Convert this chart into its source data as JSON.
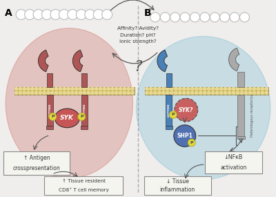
{
  "fig_width": 4.0,
  "fig_height": 2.85,
  "dpi": 100,
  "background": "#f0eeec",
  "panel_A_bg": "#c8605a",
  "panel_B_bg": "#6ab4d0",
  "membrane_color": "#c8b560",
  "membrane_dot_color": "#e8d890",
  "receptor_color_A": "#b05555",
  "receptor_color_B": "#4a80b8",
  "receptor_gray": "#aaaaaa",
  "syk_color_A": "#c85555",
  "syk_color_B": "#c86060",
  "shp1_color": "#5070b0",
  "phospho_color": "#e0d840",
  "phospho_border": "#b0a820",
  "phospho_text": "#444444",
  "arrow_color": "#555555",
  "box_facecolor": "#f5f5f0",
  "box_edgecolor": "#888888",
  "text_color": "#333333",
  "white_text": "#ffffff",
  "dashed_color": "#999999",
  "label_A": "A",
  "label_B": "B",
  "top_text_line1": "Affinity? Avidity?",
  "top_text_line2": "Duration? pH?",
  "top_text_line3": "Ionic strength?",
  "question_mark": "?",
  "syk_label": "SYK",
  "syk_q_label": "SYK?",
  "shp1_label": "SHP1",
  "lstyee_label": "LSTYIEE",
  "box1_line1": "↑ Antigen",
  "box1_line2": "crosspresentation",
  "box2_line1": "↑ Tissue resident",
  "box2_line2": "CD8⁺ T cell memory",
  "box3_line1": "↓NFκB",
  "box3_line2": "activation",
  "box4_line1": "↓ Tissue",
  "box4_line2": "inflammation",
  "het_receptor_label": "Heterologous receptor(s)"
}
